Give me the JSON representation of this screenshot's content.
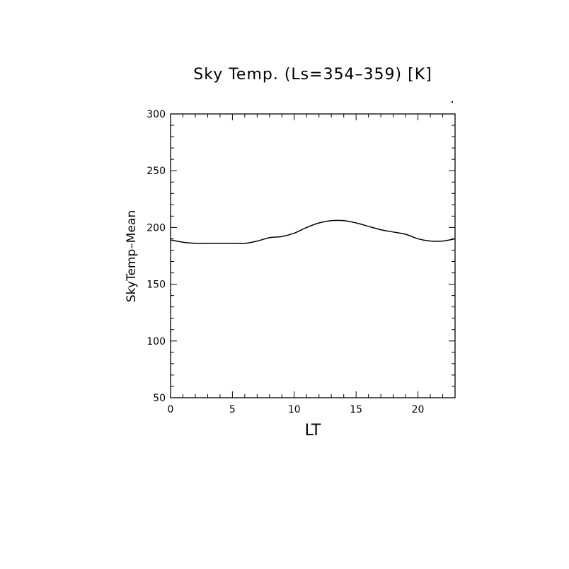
{
  "chart_data": {
    "type": "line",
    "title": "Sky Temp. (Ls=354–359) [K]",
    "xlabel": "LT",
    "ylabel": "SkyTemp–Mean",
    "xlim": [
      0,
      23
    ],
    "ylim": [
      50,
      300
    ],
    "x_ticks": [
      0,
      5,
      10,
      15,
      20
    ],
    "y_ticks": [
      50,
      100,
      150,
      200,
      250,
      300
    ],
    "x_ticks_labels": [
      "0",
      "5",
      "10",
      "15",
      "20"
    ],
    "y_ticks_labels": [
      "50",
      "100",
      "150",
      "200",
      "250",
      "300"
    ],
    "x_minor_step": 1,
    "y_minor_step": 10,
    "grid": false,
    "series": [
      {
        "x": [
          0,
          1,
          2,
          3,
          4,
          5,
          6,
          7,
          8,
          9,
          10,
          11,
          12,
          13,
          14,
          15,
          16,
          17,
          18,
          19,
          20,
          21,
          22,
          23
        ],
        "values": [
          189,
          187,
          186,
          186,
          186,
          186,
          186,
          188,
          191,
          192,
          195,
          200,
          204,
          206,
          206,
          204,
          201,
          198,
          196,
          194,
          190,
          188,
          188,
          190
        ]
      }
    ]
  }
}
